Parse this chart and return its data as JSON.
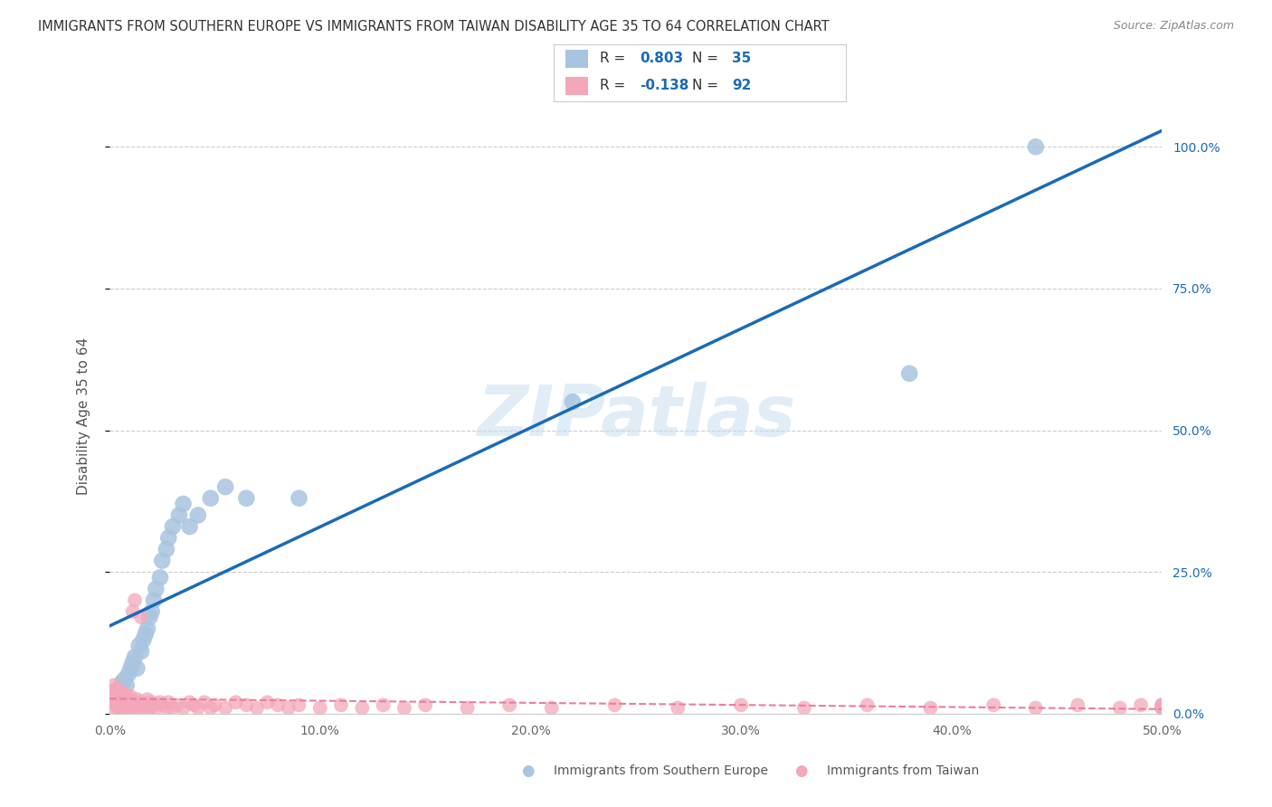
{
  "title": "IMMIGRANTS FROM SOUTHERN EUROPE VS IMMIGRANTS FROM TAIWAN DISABILITY AGE 35 TO 64 CORRELATION CHART",
  "source": "Source: ZipAtlas.com",
  "ylabel": "Disability Age 35 to 64",
  "series1_label": "Immigrants from Southern Europe",
  "series2_label": "Immigrants from Taiwan",
  "series1_color": "#a8c4e0",
  "series2_color": "#f4a7b9",
  "series1_line_color": "#1a6bb5",
  "series2_line_color": "#e87fa0",
  "legend_text_color": "#1a6bb5",
  "axis_label_color": "#1a6bb5",
  "title_color": "#333333",
  "source_color": "#888888",
  "grid_color": "#cccccc",
  "R1": 0.803,
  "N1": 35,
  "R2": -0.138,
  "N2": 92,
  "xlim": [
    0.0,
    0.5
  ],
  "ylim": [
    0.0,
    1.05
  ],
  "watermark": "ZIPatlas",
  "blue_x": [
    0.003,
    0.005,
    0.006,
    0.007,
    0.008,
    0.009,
    0.01,
    0.011,
    0.012,
    0.013,
    0.014,
    0.015,
    0.016,
    0.017,
    0.018,
    0.019,
    0.02,
    0.021,
    0.022,
    0.024,
    0.025,
    0.027,
    0.028,
    0.03,
    0.033,
    0.035,
    0.038,
    0.042,
    0.048,
    0.055,
    0.065,
    0.09,
    0.22,
    0.38,
    0.44
  ],
  "blue_y": [
    0.04,
    0.03,
    0.055,
    0.06,
    0.05,
    0.07,
    0.08,
    0.09,
    0.1,
    0.08,
    0.12,
    0.11,
    0.13,
    0.14,
    0.15,
    0.17,
    0.18,
    0.2,
    0.22,
    0.24,
    0.27,
    0.29,
    0.31,
    0.33,
    0.35,
    0.37,
    0.33,
    0.35,
    0.38,
    0.4,
    0.38,
    0.38,
    0.55,
    0.6,
    1.0
  ],
  "pink_x": [
    0.001,
    0.001,
    0.002,
    0.002,
    0.002,
    0.003,
    0.003,
    0.003,
    0.004,
    0.004,
    0.004,
    0.005,
    0.005,
    0.005,
    0.005,
    0.006,
    0.006,
    0.006,
    0.007,
    0.007,
    0.007,
    0.008,
    0.008,
    0.008,
    0.009,
    0.009,
    0.01,
    0.01,
    0.01,
    0.011,
    0.011,
    0.012,
    0.012,
    0.013,
    0.013,
    0.014,
    0.015,
    0.015,
    0.016,
    0.017,
    0.018,
    0.019,
    0.02,
    0.021,
    0.022,
    0.024,
    0.025,
    0.027,
    0.028,
    0.03,
    0.032,
    0.035,
    0.038,
    0.04,
    0.042,
    0.045,
    0.048,
    0.05,
    0.055,
    0.06,
    0.065,
    0.07,
    0.075,
    0.08,
    0.085,
    0.09,
    0.1,
    0.11,
    0.12,
    0.13,
    0.14,
    0.15,
    0.17,
    0.19,
    0.21,
    0.24,
    0.27,
    0.3,
    0.33,
    0.36,
    0.39,
    0.42,
    0.44,
    0.46,
    0.48,
    0.49,
    0.5,
    0.5,
    0.5,
    0.5,
    0.5,
    0.5
  ],
  "pink_y": [
    0.02,
    0.04,
    0.01,
    0.03,
    0.05,
    0.015,
    0.025,
    0.04,
    0.01,
    0.02,
    0.035,
    0.015,
    0.025,
    0.01,
    0.04,
    0.02,
    0.03,
    0.01,
    0.015,
    0.025,
    0.035,
    0.01,
    0.02,
    0.03,
    0.015,
    0.025,
    0.01,
    0.02,
    0.03,
    0.015,
    0.18,
    0.01,
    0.2,
    0.015,
    0.025,
    0.01,
    0.02,
    0.17,
    0.015,
    0.01,
    0.025,
    0.01,
    0.02,
    0.015,
    0.01,
    0.02,
    0.015,
    0.01,
    0.02,
    0.01,
    0.015,
    0.01,
    0.02,
    0.015,
    0.01,
    0.02,
    0.01,
    0.015,
    0.01,
    0.02,
    0.015,
    0.01,
    0.02,
    0.015,
    0.01,
    0.015,
    0.01,
    0.015,
    0.01,
    0.015,
    0.01,
    0.015,
    0.01,
    0.015,
    0.01,
    0.015,
    0.01,
    0.015,
    0.01,
    0.015,
    0.01,
    0.015,
    0.01,
    0.015,
    0.01,
    0.015,
    0.01,
    0.015,
    0.01,
    0.015,
    0.01,
    0.015
  ]
}
